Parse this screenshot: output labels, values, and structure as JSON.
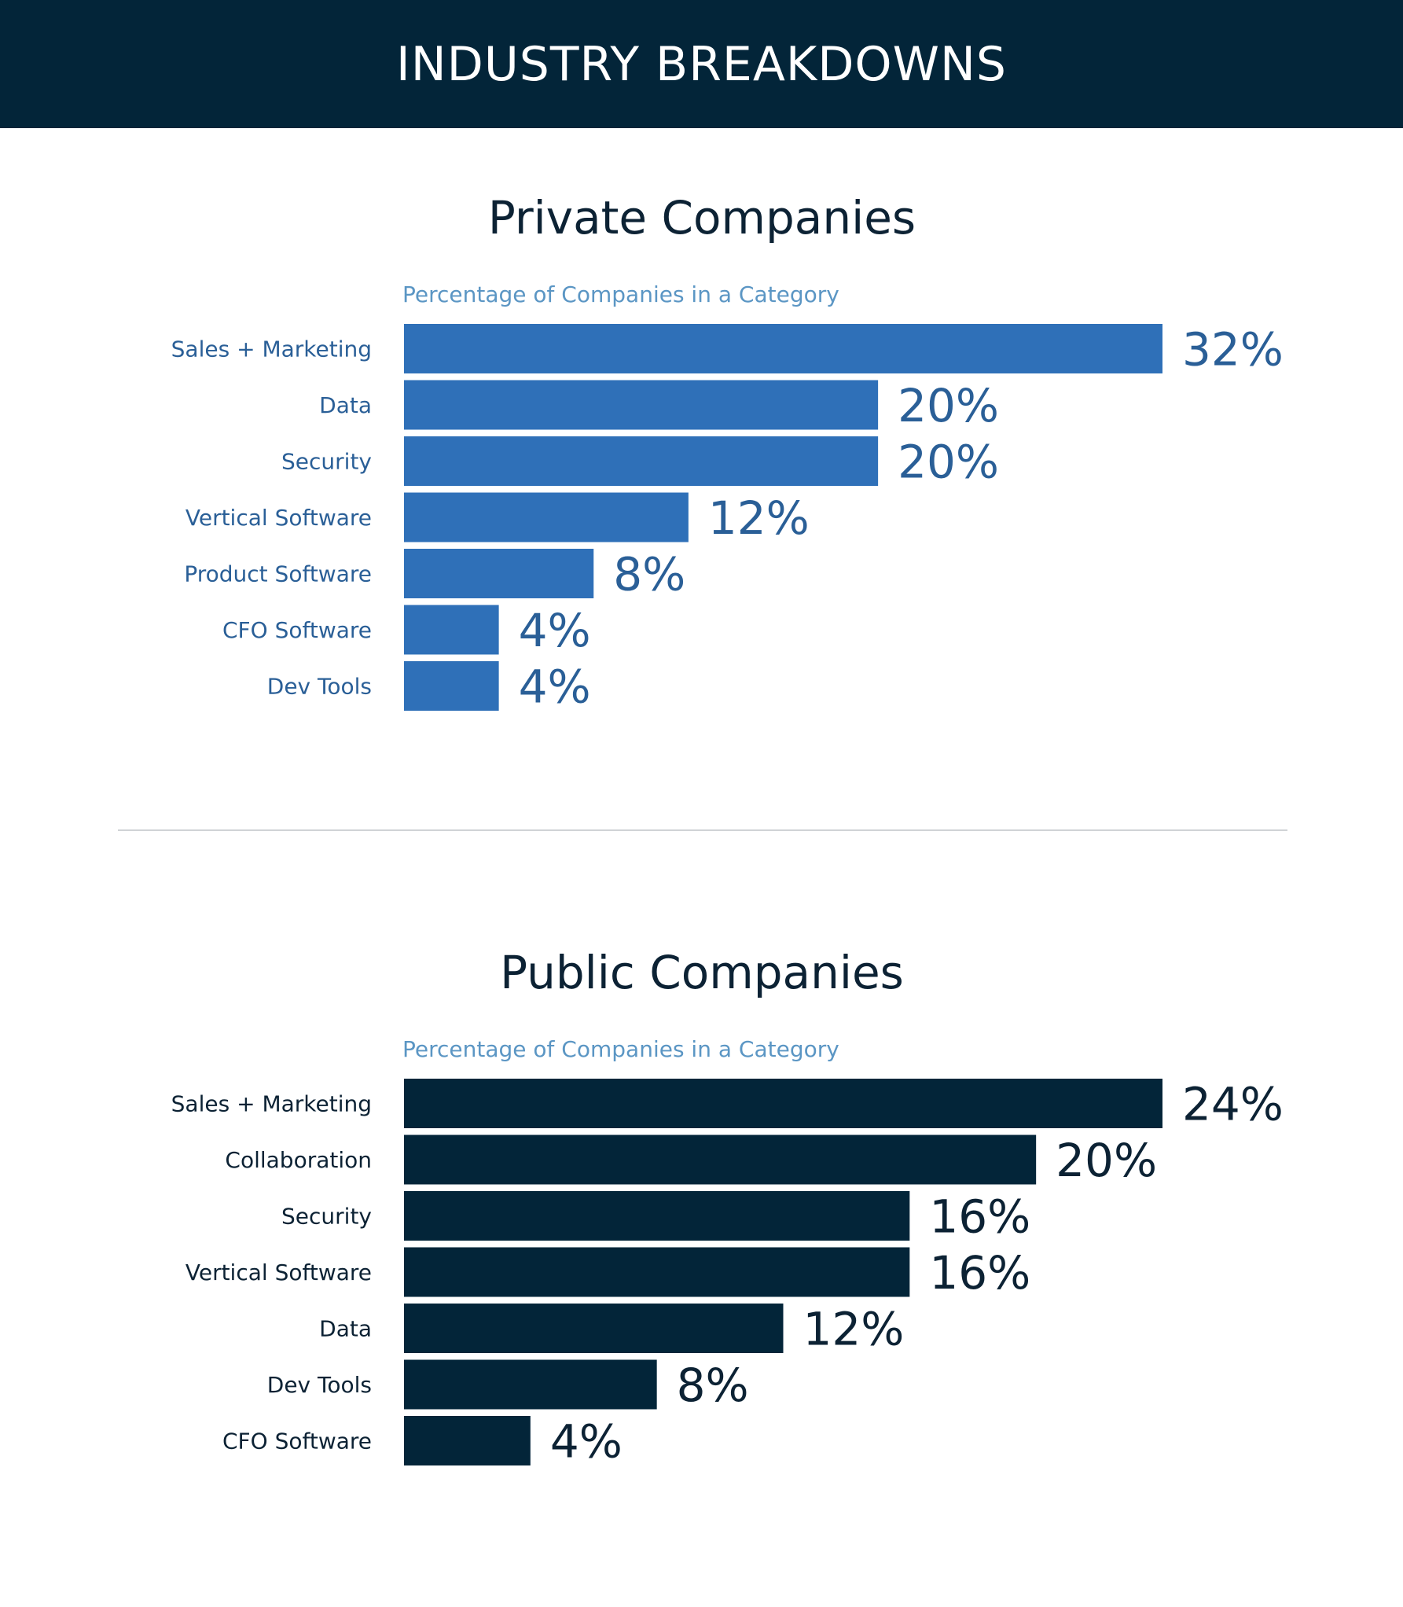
{
  "header": {
    "title": "INDUSTRY BREAKDOWNS"
  },
  "colors": {
    "header_bg": "#032539",
    "private_bar": "#2f70b8",
    "private_text": "#2a5f97",
    "public_bar": "#032539",
    "public_text": "#0c2234",
    "subtitle": "#5b96c4",
    "title": "#0c2234",
    "divider": "#d0d3d6"
  },
  "chart_data": [
    {
      "type": "bar",
      "orientation": "horizontal",
      "title": "Private Companies",
      "subtitle": "Percentage of Companies in a Category",
      "categories": [
        "Sales + Marketing",
        "Data",
        "Security",
        "Vertical Software",
        "Product Software",
        "CFO Software",
        "Dev Tools"
      ],
      "values": [
        32,
        20,
        20,
        12,
        8,
        4,
        4
      ],
      "value_labels": [
        "32%",
        "20%",
        "20%",
        "12%",
        "8%",
        "4%",
        "4%"
      ],
      "unit": "%",
      "xlim": [
        0,
        32
      ],
      "grid": false,
      "bar_color": "#2f70b8"
    },
    {
      "type": "bar",
      "orientation": "horizontal",
      "title": "Public Companies",
      "subtitle": "Percentage of Companies in a Category",
      "categories": [
        "Sales + Marketing",
        "Collaboration",
        "Security",
        "Vertical Software",
        "Data",
        "Dev Tools",
        "CFO Software"
      ],
      "values": [
        24,
        20,
        16,
        16,
        12,
        8,
        4
      ],
      "value_labels": [
        "24%",
        "20%",
        "16%",
        "16%",
        "12%",
        "8%",
        "4%"
      ],
      "unit": "%",
      "xlim": [
        0,
        24
      ],
      "grid": false,
      "bar_color": "#032539"
    }
  ]
}
